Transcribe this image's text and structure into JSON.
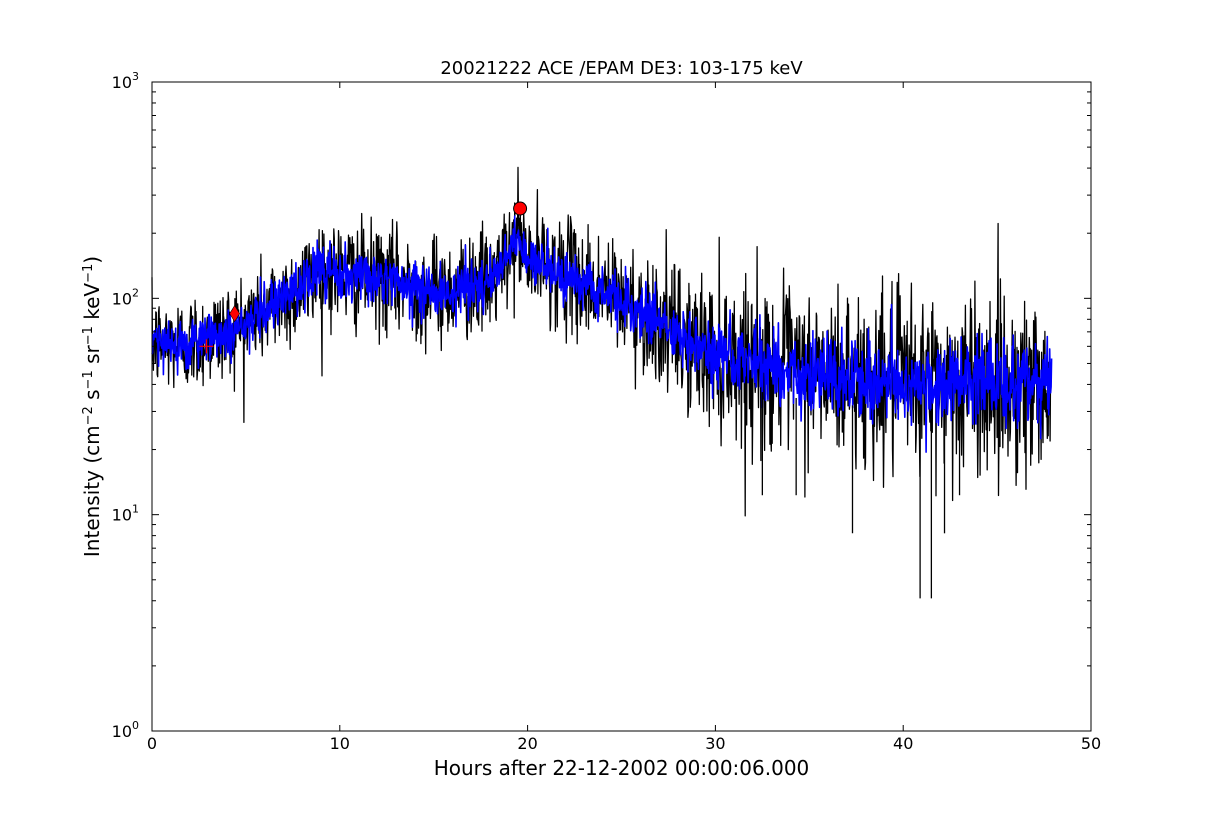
{
  "chart_data": {
    "type": "line",
    "title": "20021222 ACE /EPAM DE3: 103-175 keV",
    "xlabel": "Hours after 22-12-2002 00:00:06.000",
    "ylabel": {
      "prefix": "Intensity (cm",
      "parts": [
        {
          "base": "cm",
          "exp": "−2"
        },
        {
          "base": " s",
          "exp": "−1"
        },
        {
          "base": " sr",
          "exp": "−1"
        },
        {
          "base": " keV",
          "exp": "−1"
        }
      ],
      "suffix": ")"
    },
    "xlim": [
      0,
      50
    ],
    "ylim": [
      1,
      1000
    ],
    "yscale": "log",
    "grid": false,
    "x_ticks": [
      0,
      10,
      20,
      30,
      40,
      50
    ],
    "y_ticks": [
      {
        "value": 1,
        "base": "10",
        "exp": "0"
      },
      {
        "value": 10,
        "base": "10",
        "exp": "1"
      },
      {
        "value": 100,
        "base": "10",
        "exp": "2"
      },
      {
        "value": 1000,
        "base": "10",
        "exp": "3"
      }
    ],
    "series": [
      {
        "color": "#000000",
        "x_range": [
          0,
          47.9
        ],
        "trend": [
          [
            0,
            62
          ],
          [
            2,
            62
          ],
          [
            4,
            70
          ],
          [
            6,
            88
          ],
          [
            8,
            112
          ],
          [
            9,
            140
          ],
          [
            10,
            130
          ],
          [
            12,
            123
          ],
          [
            14,
            113
          ],
          [
            16,
            108
          ],
          [
            17,
            118
          ],
          [
            18,
            118
          ],
          [
            19,
            155
          ],
          [
            19.5,
            200
          ],
          [
            20,
            150
          ],
          [
            22,
            130
          ],
          [
            24,
            108
          ],
          [
            26,
            88
          ],
          [
            28,
            65
          ],
          [
            30,
            55
          ],
          [
            32,
            50
          ],
          [
            35,
            45
          ],
          [
            38,
            42
          ],
          [
            42,
            41
          ],
          [
            47.9,
            41
          ]
        ],
        "spread": [
          [
            0,
            0.2
          ],
          [
            10,
            0.22
          ],
          [
            20,
            0.22
          ],
          [
            26,
            0.25
          ],
          [
            30,
            0.33
          ],
          [
            48,
            0.4
          ]
        ]
      },
      {
        "color": "#0000ff",
        "x_range": [
          0,
          47.9
        ],
        "trend": [
          [
            0,
            62
          ],
          [
            2,
            62
          ],
          [
            4,
            70
          ],
          [
            6,
            88
          ],
          [
            8,
            112
          ],
          [
            9,
            140
          ],
          [
            10,
            130
          ],
          [
            12,
            123
          ],
          [
            14,
            113
          ],
          [
            16,
            108
          ],
          [
            17,
            118
          ],
          [
            18,
            118
          ],
          [
            19,
            155
          ],
          [
            19.5,
            200
          ],
          [
            20,
            150
          ],
          [
            22,
            130
          ],
          [
            24,
            108
          ],
          [
            26,
            88
          ],
          [
            28,
            65
          ],
          [
            30,
            55
          ],
          [
            32,
            50
          ],
          [
            35,
            45
          ],
          [
            38,
            42
          ],
          [
            42,
            41
          ],
          [
            47.9,
            41
          ]
        ],
        "spread": [
          [
            0,
            0.1
          ],
          [
            10,
            0.11
          ],
          [
            20,
            0.11
          ],
          [
            26,
            0.12
          ],
          [
            30,
            0.15
          ],
          [
            48,
            0.17
          ]
        ]
      }
    ],
    "dips": [
      {
        "x": 37.3,
        "y": 8.2
      },
      {
        "x": 40.9,
        "y": 4.1
      },
      {
        "x": 41.5,
        "y": 4.1
      },
      {
        "x": 42.2,
        "y": 8.2
      },
      {
        "x": 34.3,
        "y": 12.3
      },
      {
        "x": 32.5,
        "y": 12.3
      },
      {
        "x": 43.0,
        "y": 12.3
      }
    ],
    "markers": [
      {
        "shape": "circle",
        "x": 19.6,
        "y": 260,
        "color": "#ff0000"
      },
      {
        "shape": "diamond",
        "x": 4.4,
        "y": 85,
        "color": "#ff0000"
      },
      {
        "shape": "plus",
        "x": 2.9,
        "y": 60,
        "color": "#ff0000"
      }
    ]
  }
}
